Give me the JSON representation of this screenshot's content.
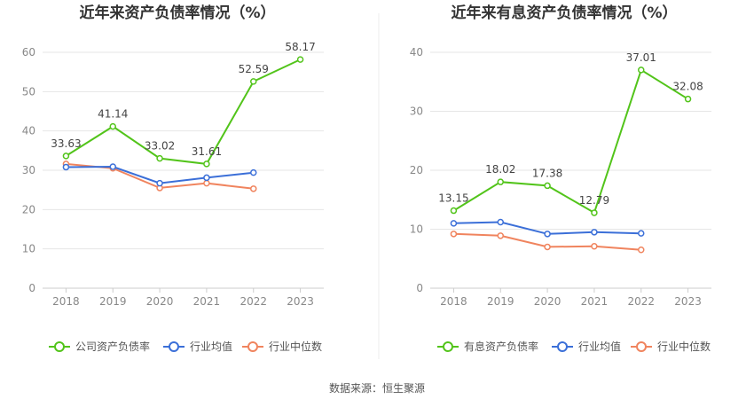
{
  "chart_data": [
    {
      "type": "line",
      "title": "近年来资产负债率情况（%）",
      "categories": [
        "2018",
        "2019",
        "2020",
        "2021",
        "2022",
        "2023"
      ],
      "ylim": [
        0,
        60
      ],
      "yticks": [
        0,
        10,
        20,
        30,
        40,
        50,
        60
      ],
      "grid": true,
      "legend_position": "bottom",
      "series": [
        {
          "name": "公司资产负债率",
          "color": "#52c41a",
          "values": [
            33.63,
            41.14,
            33.02,
            31.61,
            52.59,
            58.17
          ],
          "show_labels": true
        },
        {
          "name": "行业均值",
          "color": "#3b6fd8",
          "values": [
            30.8,
            30.9,
            26.7,
            28.1,
            29.4,
            null
          ],
          "show_labels": false
        },
        {
          "name": "行业中位数",
          "color": "#f0845e",
          "values": [
            31.6,
            30.5,
            25.5,
            26.7,
            25.3,
            null
          ],
          "show_labels": false
        }
      ]
    },
    {
      "type": "line",
      "title": "近年来有息资产负债率情况（%）",
      "categories": [
        "2018",
        "2019",
        "2020",
        "2021",
        "2022",
        "2023"
      ],
      "ylim": [
        0,
        40
      ],
      "yticks": [
        0,
        10,
        20,
        30,
        40
      ],
      "grid": true,
      "legend_position": "bottom",
      "series": [
        {
          "name": "有息资产负债率",
          "color": "#52c41a",
          "values": [
            13.15,
            18.02,
            17.38,
            12.79,
            37.01,
            32.08
          ],
          "show_labels": true
        },
        {
          "name": "行业均值",
          "color": "#3b6fd8",
          "values": [
            11.0,
            11.2,
            9.2,
            9.5,
            9.3,
            null
          ],
          "show_labels": false
        },
        {
          "name": "行业中位数",
          "color": "#f0845e",
          "values": [
            9.2,
            8.9,
            7.0,
            7.1,
            6.5,
            null
          ],
          "show_labels": false
        }
      ]
    }
  ],
  "footer": {
    "source": "数据来源：恒生聚源"
  }
}
